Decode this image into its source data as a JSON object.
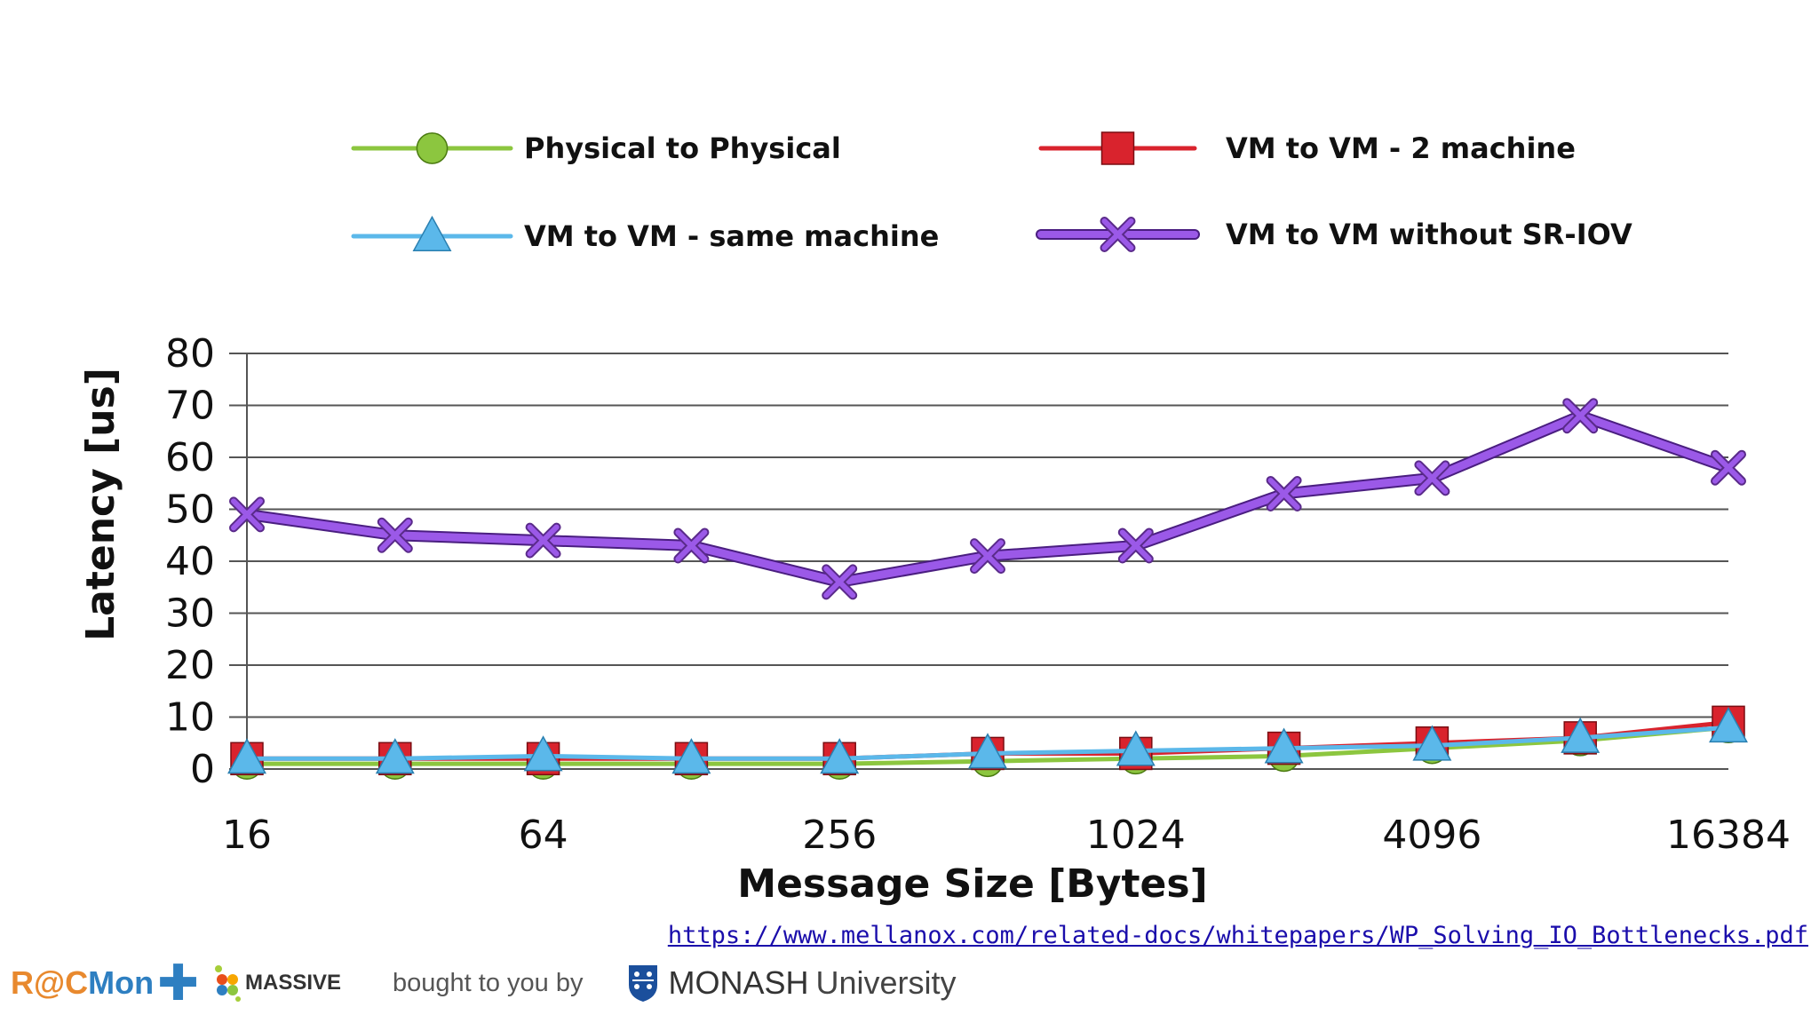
{
  "chart_data": {
    "type": "line",
    "title": "",
    "xlabel": "Message Size [Bytes]",
    "ylabel": "Latency [us]",
    "ylim": [
      0,
      80
    ],
    "yticks": [
      0,
      10,
      20,
      30,
      40,
      50,
      60,
      70,
      80
    ],
    "x": [
      16,
      32,
      64,
      128,
      256,
      512,
      1024,
      2048,
      4096,
      8192,
      16384
    ],
    "x_tick_labels": [
      "16",
      "64",
      "256",
      "1024",
      "4096",
      "16384"
    ],
    "x_tick_values": [
      16,
      64,
      256,
      1024,
      4096,
      16384
    ],
    "grid": "horizontal",
    "series": [
      {
        "name": "Physical to Physical",
        "color": "#8cc63f",
        "marker": "circle",
        "values": [
          1,
          1,
          1,
          1,
          1,
          1.5,
          2,
          2.5,
          4,
          5.5,
          8
        ]
      },
      {
        "name": "VM to VM - 2 machine",
        "color": "#d9232d",
        "marker": "square",
        "values": [
          2,
          2,
          2,
          2,
          2,
          3,
          3,
          4,
          5,
          6,
          9
        ]
      },
      {
        "name": "VM to VM - same machine",
        "color": "#5bb8ea",
        "marker": "triangle",
        "values": [
          2,
          2,
          2.5,
          2,
          2,
          3,
          3.5,
          4,
          4.5,
          6,
          8
        ]
      },
      {
        "name": "VM to VM without SR-IOV",
        "color": "#9b59e8",
        "marker": "x",
        "values": [
          49,
          45,
          44,
          43,
          36,
          41,
          43,
          53,
          56,
          68,
          58
        ]
      }
    ]
  },
  "source_link": "https://www.mellanox.com/related-docs/whitepapers/WP_Solving_IO_Bottlenecks.pdf",
  "footer": {
    "racmon_a": "R@C",
    "racmon_b": "Mon",
    "massive": "MASSIVE",
    "bought_by": "bought to you by",
    "monash": "MONASH",
    "university": "University"
  }
}
